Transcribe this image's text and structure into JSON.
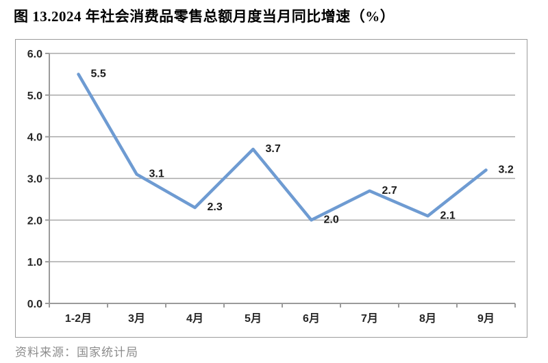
{
  "page": {
    "title": "图 13.2024 年社会消费品零售总额月度当月同比增速（%）",
    "source": "资料来源：国家统计局"
  },
  "chart_data": {
    "type": "line",
    "title": "图 13.2024 年社会消费品零售总额月度当月同比增速（%）",
    "categories": [
      "1-2月",
      "3月",
      "4月",
      "5月",
      "6月",
      "7月",
      "8月",
      "9月"
    ],
    "values": [
      5.5,
      3.1,
      2.3,
      3.7,
      2.0,
      2.7,
      2.1,
      3.2
    ],
    "data_labels": [
      "5.5",
      "3.1",
      "2.3",
      "3.7",
      "2.0",
      "2.7",
      "2.1",
      "3.2"
    ],
    "xlabel": "",
    "ylabel": "",
    "ylim": [
      0,
      6
    ],
    "ytick_step": 1,
    "ytick_labels": [
      "0.0",
      "1.0",
      "2.0",
      "3.0",
      "4.0",
      "5.0",
      "6.0"
    ],
    "grid": true,
    "legend": false,
    "source": "资料来源：国家统计局",
    "colors": {
      "line": "#6E9BD2",
      "gridline": "#a8a8a8",
      "axis": "#9b9b9b",
      "frame_border": "#9b9b9b",
      "tick_text": "#262626",
      "data_label_text": "#1a1a1a",
      "source_text": "#8c8c8c",
      "title_text": "#000000"
    }
  }
}
